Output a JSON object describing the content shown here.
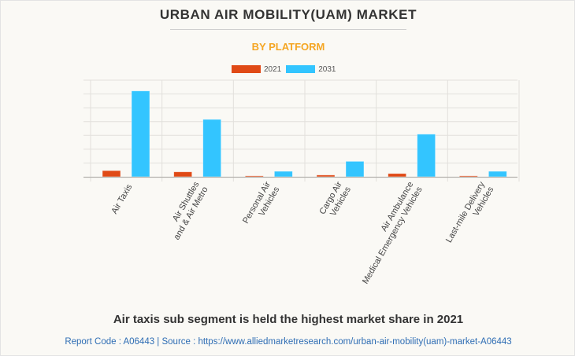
{
  "header": {
    "title": "URBAN AIR MOBILITY(UAM) MARKET",
    "subtitle": "BY PLATFORM",
    "subtitle_color": "#f5a623"
  },
  "footer": {
    "caption": "Air taxis sub segment is held the highest market share in 2021",
    "source": "Report Code : A06443  |  Source : https://www.alliedmarketresearch.com/urban-air-mobility(uam)-market-A06443",
    "source_color": "#2e6db4"
  },
  "chart_data": {
    "type": "bar",
    "title": "URBAN AIR MOBILITY(UAM) MARKET",
    "subtitle": "BY PLATFORM",
    "xlabel": "",
    "ylabel": "",
    "y_axis_labels_shown": false,
    "grid": true,
    "legend_position": "top-center",
    "ylim": [
      0,
      7
    ],
    "y_gridlines": [
      0,
      1,
      2,
      3,
      4,
      5,
      6,
      7
    ],
    "categories": [
      [
        "Air Taxis"
      ],
      [
        "Air Shuttles",
        "and & Air Metro"
      ],
      [
        "Personal Air",
        "Vehicles"
      ],
      [
        "Cargo Air",
        "Vehicles"
      ],
      [
        "Air Ambulance",
        "Medical Emergency Vehicles"
      ],
      [
        "Last-mile Delivery",
        "Vehicles"
      ]
    ],
    "series": [
      {
        "name": "2021",
        "color": "#e04a16",
        "values": [
          0.45,
          0.36,
          0.07,
          0.13,
          0.24,
          0.07
        ]
      },
      {
        "name": "2031",
        "color": "#33c5ff",
        "values": [
          6.22,
          4.16,
          0.4,
          1.12,
          3.09,
          0.4
        ]
      }
    ]
  }
}
